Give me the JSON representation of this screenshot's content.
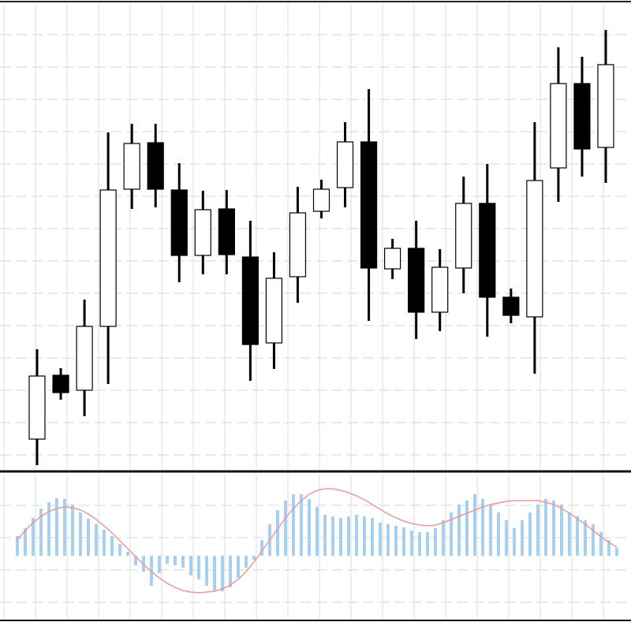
{
  "chart_data": [
    {
      "type": "candlestick",
      "open": [
        43,
        124,
        105,
        186,
        360,
        419,
        359,
        276,
        335,
        274,
        165,
        249,
        332,
        362,
        420,
        259,
        285,
        204,
        260,
        342,
        223,
        198,
        387,
        494,
        413
      ],
      "high": [
        157,
        133,
        220,
        432,
        443,
        443,
        393,
        358,
        359,
        320,
        280,
        363,
        372,
        445,
        487,
        297,
        320,
        284,
        376,
        392,
        234,
        445,
        540,
        528,
        562
      ],
      "low": [
        10,
        93,
        72,
        113,
        335,
        337,
        242,
        252,
        252,
        117,
        132,
        216,
        323,
        337,
        193,
        246,
        170,
        180,
        228,
        173,
        190,
        126,
        344,
        376,
        368
      ],
      "close": [
        123,
        102,
        186,
        359,
        418,
        360,
        276,
        334,
        277,
        163,
        247,
        330,
        360,
        420,
        260,
        285,
        204,
        261,
        342,
        223,
        200,
        371,
        494,
        411,
        518
      ],
      "up_color": "#ffffff",
      "down_color": "#000000",
      "ylim": [
        0,
        600
      ],
      "grid": true
    },
    {
      "type": "macd",
      "series": [
        {
          "type": "bar",
          "color": "#a6cff0",
          "values": [
            25,
            35,
            48,
            60,
            68,
            73,
            72,
            65,
            55,
            47,
            40,
            33,
            25,
            15,
            5,
            -12,
            -20,
            -38,
            -22,
            -10,
            -12,
            -15,
            -25,
            -30,
            -38,
            -45,
            -45,
            -40,
            -28,
            -15,
            -5,
            20,
            40,
            58,
            70,
            78,
            78,
            72,
            62,
            52,
            50,
            48,
            50,
            52,
            50,
            48,
            42,
            40,
            38,
            36,
            32,
            30,
            30,
            35,
            45,
            55,
            65,
            70,
            78,
            72,
            65,
            55,
            45,
            35,
            45,
            55,
            65,
            72,
            70,
            65,
            55,
            50,
            45,
            40,
            30,
            20,
            10
          ]
        },
        {
          "type": "line",
          "color": "#e89a9a",
          "values": [
            20,
            32,
            42,
            50,
            56,
            60,
            62,
            61,
            58,
            53,
            46,
            38,
            29,
            19,
            9,
            -1,
            -11,
            -20,
            -28,
            -35,
            -40,
            -44,
            -46,
            -47,
            -46,
            -45,
            -42,
            -37,
            -30,
            -20,
            -8,
            6,
            20,
            34,
            48,
            60,
            70,
            78,
            83,
            85,
            85,
            83,
            80,
            76,
            71,
            65,
            59,
            53,
            48,
            44,
            41,
            39,
            38,
            39,
            42,
            46,
            50,
            54,
            58,
            62,
            65,
            67,
            69,
            70,
            70,
            70,
            70,
            68,
            65,
            60,
            54,
            47,
            40,
            32,
            24,
            17,
            11
          ]
        }
      ],
      "ylim": [
        -84,
        105
      ],
      "grid": true
    }
  ]
}
